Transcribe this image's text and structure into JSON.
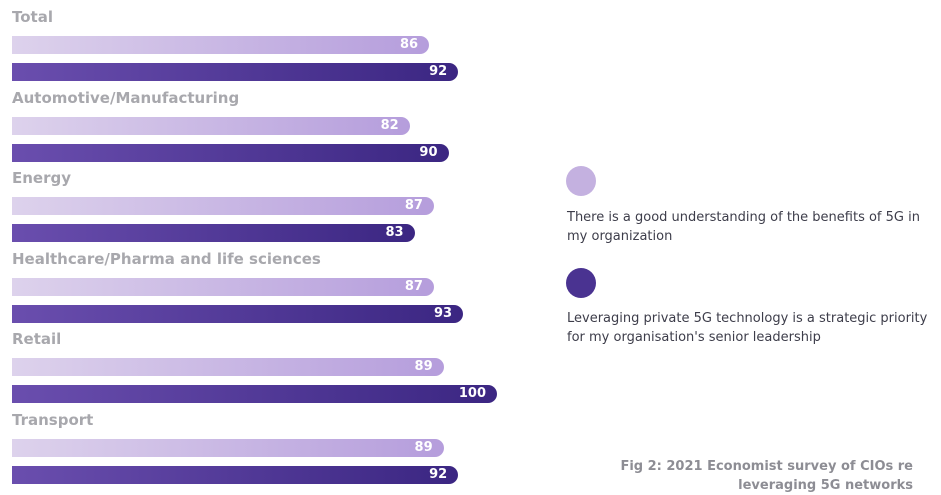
{
  "chart_data": {
    "type": "bar",
    "orientation": "horizontal",
    "categories": [
      "Total",
      "Automotive/Manufacturing",
      "Energy",
      "Healthcare/Pharma and life sciences",
      "Retail",
      "Transport"
    ],
    "series": [
      {
        "name": "There is a good understanding of the benefits of 5G in my organization",
        "color": "#b59ddc",
        "values": [
          86,
          82,
          87,
          87,
          89,
          89
        ]
      },
      {
        "name": "Leveraging private 5G technology is a strategic priority for my organisation's senior leadership",
        "color": "#3b2682",
        "values": [
          92,
          90,
          83,
          93,
          100,
          92
        ]
      }
    ],
    "xlim": [
      0,
      100
    ],
    "legend_position": "right",
    "grid": false
  },
  "legend": {
    "items": [
      {
        "label": "There is a good understanding of the benefits of 5G in my organization",
        "color": "#c4b1e0"
      },
      {
        "label": "Leveraging private 5G technology is a strategic priority for my organisation's senior leadership",
        "color": "#4a3391"
      }
    ]
  },
  "caption": "Fig 2: 2021 Economist survey of CIOs re leveraging 5G networks"
}
